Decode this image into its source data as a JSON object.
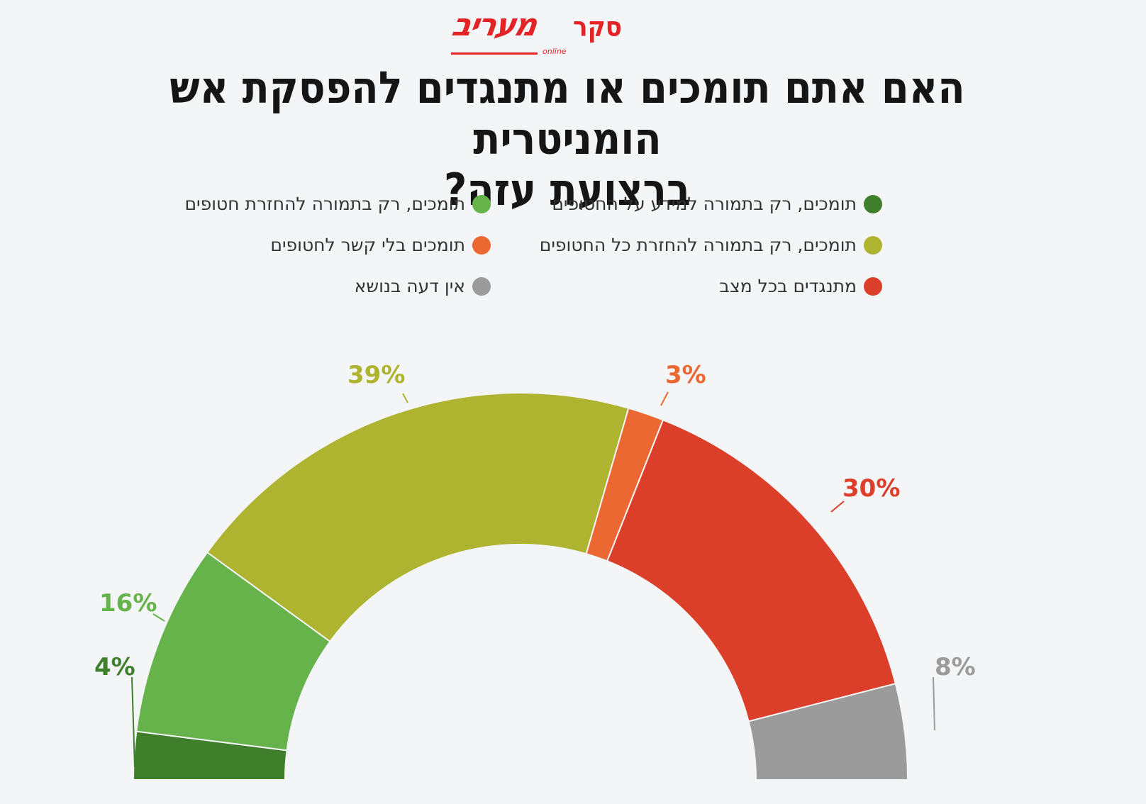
{
  "brand": {
    "survey_label": "סקר",
    "name": "מעריב",
    "online": "online",
    "color": "#e32325"
  },
  "title_lines": [
    "האם אתם תומכים או מתנגדים להפסקת אש הומניטרית",
    "ברצועת עזה?"
  ],
  "chart_data": {
    "type": "pie",
    "variant": "semicircle-donut",
    "title": "האם אתם תומכים או מתנגדים להפסקת אש הומניטרית ברצועת עזה?",
    "legend": "top, two columns",
    "slices": [
      {
        "label": "תומכים, רק בתמורה למידע על החטופים",
        "value": 4,
        "display": "4%",
        "color": "#3f7f2c"
      },
      {
        "label": "תומכים, רק בתמורה להחזרת חטופים",
        "value": 16,
        "display": "16%",
        "color": "#65b34a"
      },
      {
        "label": "תומכים, רק בתמורה להחזרת כל החטופים",
        "value": 39,
        "display": "39%",
        "color": "#aeb330"
      },
      {
        "label": "תומכים בלי קשר לחטופים",
        "value": 3,
        "display": "3%",
        "color": "#ec6833"
      },
      {
        "label": "מתנגדים בכל מצב",
        "value": 30,
        "display": "30%",
        "color": "#dc3f29"
      },
      {
        "label": "אין דעה בנושא",
        "value": 8,
        "display": "8%",
        "color": "#9b9b9b"
      }
    ],
    "label_colors": [
      "#3f7f2c",
      "#65b34a",
      "#aeb330",
      "#ec6833",
      "#dc3f29",
      "#9b9b9b"
    ]
  }
}
